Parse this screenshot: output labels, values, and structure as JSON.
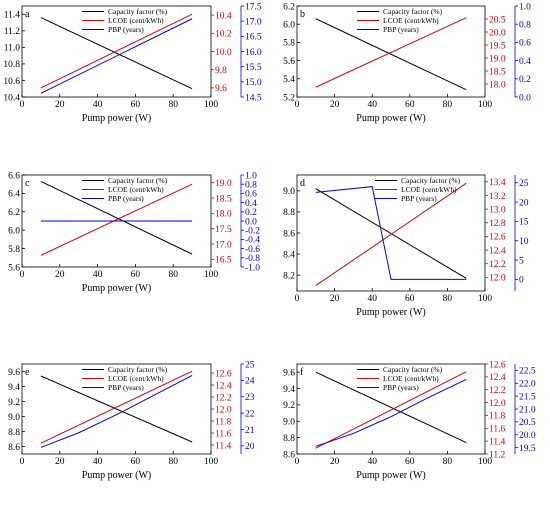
{
  "colors": {
    "capacity": "#000000",
    "lcoe": "#e00000",
    "pbp": "#0000ee"
  },
  "chart_data": [
    {
      "type": "line",
      "panel": "a",
      "xlabel": "Pump power (W)",
      "xlim": [
        0,
        100
      ],
      "xticks": [
        0,
        20,
        40,
        60,
        80,
        100
      ],
      "legend": [
        "Capacity factor (%)",
        "LCOE (cent/kWh)",
        "PBP (years)"
      ],
      "legend_position": "top-center",
      "axes": {
        "left": {
          "lim": [
            10.4,
            11.5
          ],
          "ticks": [
            10.4,
            10.6,
            10.8,
            11.0,
            11.2,
            11.4
          ],
          "decimals": 1
        },
        "red": {
          "lim": [
            9.5,
            10.5
          ],
          "ticks": [
            9.6,
            9.8,
            10.0,
            10.2,
            10.4
          ],
          "decimals": 1
        },
        "blue": {
          "lim": [
            14.5,
            17.5
          ],
          "ticks": [
            14.5,
            15.0,
            15.5,
            16.0,
            16.5,
            17.0,
            17.5
          ],
          "decimals": 1
        }
      },
      "series": [
        {
          "name": "Capacity factor (%)",
          "axis": "left",
          "x": [
            10,
            90
          ],
          "y": [
            11.36,
            10.5
          ]
        },
        {
          "name": "LCOE (cent/kWh)",
          "axis": "red",
          "x": [
            10,
            90
          ],
          "y": [
            9.6,
            10.41
          ]
        },
        {
          "name": "PBP (years)",
          "axis": "blue",
          "x": [
            10,
            90
          ],
          "y": [
            14.62,
            17.08
          ]
        }
      ]
    },
    {
      "type": "line",
      "panel": "b",
      "xlabel": "Pump power (W)",
      "xlim": [
        0,
        100
      ],
      "xticks": [
        0,
        20,
        40,
        60,
        80,
        100
      ],
      "legend": [
        "Capacity factor (%)",
        "LCOE (cent/kWh)",
        "PBP (years)"
      ],
      "legend_position": "top-center",
      "axes": {
        "left": {
          "lim": [
            5.2,
            6.2
          ],
          "ticks": [
            5.2,
            5.4,
            5.6,
            5.8,
            6.0,
            6.2
          ],
          "decimals": 1
        },
        "red": {
          "lim": [
            17.5,
            21.0
          ],
          "ticks": [
            18.0,
            18.5,
            19.0,
            19.5,
            20.0,
            20.5
          ],
          "decimals": 1
        },
        "blue": {
          "lim": [
            0.0,
            1.0
          ],
          "ticks": [
            0.0,
            0.2,
            0.4,
            0.6,
            0.8,
            1.0
          ],
          "decimals": 1
        }
      },
      "series": [
        {
          "name": "Capacity factor (%)",
          "axis": "left",
          "x": [
            10,
            90
          ],
          "y": [
            6.06,
            5.28
          ]
        },
        {
          "name": "LCOE (cent/kWh)",
          "axis": "red",
          "x": [
            10,
            90
          ],
          "y": [
            17.88,
            20.55
          ]
        },
        {
          "name": "PBP (years)",
          "axis": "blue",
          "x": [],
          "y": []
        }
      ]
    },
    {
      "type": "line",
      "panel": "c",
      "xlabel": "Pump power (W)",
      "xlim": [
        0,
        100
      ],
      "xticks": [
        0,
        20,
        40,
        60,
        80,
        100
      ],
      "legend": [
        "Capacity factor (%)",
        "LCOE (cent/kWh)",
        "PBP (years)"
      ],
      "legend_position": "top-center",
      "axes": {
        "left": {
          "lim": [
            5.6,
            6.6
          ],
          "ticks": [
            5.6,
            5.8,
            6.0,
            6.2,
            6.4,
            6.6
          ],
          "decimals": 1
        },
        "red": {
          "lim": [
            16.25,
            19.25
          ],
          "ticks": [
            16.5,
            17.0,
            17.5,
            18.0,
            18.5,
            19.0
          ],
          "decimals": 1
        },
        "blue": {
          "lim": [
            -1.0,
            1.0
          ],
          "ticks": [
            -1.0,
            -0.8,
            -0.6,
            -0.4,
            -0.2,
            0.0,
            0.2,
            0.4,
            0.6,
            0.8,
            1.0
          ],
          "decimals": 1
        }
      },
      "series": [
        {
          "name": "Capacity factor (%)",
          "axis": "left",
          "x": [
            10,
            90
          ],
          "y": [
            6.53,
            5.74
          ]
        },
        {
          "name": "LCOE (cent/kWh)",
          "axis": "red",
          "x": [
            10,
            90
          ],
          "y": [
            16.63,
            18.95
          ]
        },
        {
          "name": "PBP (years)",
          "axis": "blue",
          "x": [
            10,
            90
          ],
          "y": [
            0.0,
            0.0
          ]
        }
      ]
    },
    {
      "type": "line",
      "panel": "d",
      "xlabel": "Pump power (W)",
      "xlim": [
        0,
        100
      ],
      "xticks": [
        0,
        20,
        40,
        60,
        80,
        100
      ],
      "legend": [
        "Capacity factor (%)",
        "LCOE (cent/kWh)",
        "PBP (years)"
      ],
      "legend_position": "top-right",
      "axes": {
        "left": {
          "lim": [
            8.05,
            9.15
          ],
          "ticks": [
            8.2,
            8.4,
            8.6,
            8.8,
            9.0
          ],
          "decimals": 1
        },
        "red": {
          "lim": [
            11.8,
            13.5
          ],
          "ticks": [
            12.0,
            12.2,
            12.4,
            12.6,
            12.8,
            13.0,
            13.2,
            13.4
          ],
          "decimals": 1
        },
        "blue": {
          "lim": [
            -3,
            27
          ],
          "ticks": [
            0,
            5,
            10,
            15,
            20,
            25
          ],
          "decimals": 0
        }
      },
      "series": [
        {
          "name": "Capacity factor (%)",
          "axis": "left",
          "x": [
            10,
            90
          ],
          "y": [
            9.02,
            8.17
          ]
        },
        {
          "name": "LCOE (cent/kWh)",
          "axis": "red",
          "x": [
            10,
            90
          ],
          "y": [
            11.88,
            13.38
          ]
        },
        {
          "name": "PBP (years)",
          "axis": "blue",
          "x": [
            10,
            40,
            50,
            60,
            70,
            80,
            90
          ],
          "y": [
            22.5,
            24,
            0,
            0,
            0,
            0,
            0
          ]
        }
      ]
    },
    {
      "type": "line",
      "panel": "e",
      "xlabel": "Pump power (W)",
      "xlim": [
        0,
        100
      ],
      "xticks": [
        0,
        20,
        40,
        60,
        80,
        100
      ],
      "legend": [
        "Capacity factor (%)",
        "LCOE (cent/kWh)",
        "PBP (years)"
      ],
      "legend_position": "top-center",
      "axes": {
        "left": {
          "lim": [
            8.5,
            9.7
          ],
          "ticks": [
            8.6,
            8.8,
            9.0,
            9.2,
            9.4,
            9.6
          ],
          "decimals": 1
        },
        "red": {
          "lim": [
            11.25,
            12.75
          ],
          "ticks": [
            11.4,
            11.6,
            11.8,
            12.0,
            12.2,
            12.4,
            12.6
          ],
          "decimals": 1
        },
        "blue": {
          "lim": [
            19.5,
            25.0
          ],
          "ticks": [
            20,
            21,
            22,
            23,
            24,
            25
          ],
          "decimals": 0
        }
      },
      "series": [
        {
          "name": "Capacity factor (%)",
          "axis": "left",
          "x": [
            10,
            90
          ],
          "y": [
            9.54,
            8.66
          ]
        },
        {
          "name": "LCOE (cent/kWh)",
          "axis": "red",
          "x": [
            10,
            90
          ],
          "y": [
            11.43,
            12.63
          ]
        },
        {
          "name": "PBP (years)",
          "axis": "blue",
          "x": [
            10,
            30,
            50,
            70,
            90
          ],
          "y": [
            19.9,
            20.8,
            21.9,
            23.1,
            24.3
          ]
        }
      ]
    },
    {
      "type": "line",
      "panel": "f",
      "xlabel": "Pump power (W)",
      "xlim": [
        0,
        100
      ],
      "xticks": [
        0,
        20,
        40,
        60,
        80,
        100
      ],
      "legend": [
        "Capacity factor (%)",
        "LCOE (cent/kWh)",
        "PBP (years)"
      ],
      "legend_position": "top-center",
      "axes": {
        "left": {
          "lim": [
            8.6,
            9.7
          ],
          "ticks": [
            8.6,
            8.8,
            9.0,
            9.2,
            9.4,
            9.6
          ],
          "decimals": 1
        },
        "red": {
          "lim": [
            11.2,
            12.6
          ],
          "ticks": [
            11.2,
            11.4,
            11.6,
            11.8,
            12.0,
            12.2,
            12.4,
            12.6
          ],
          "decimals": 1
        },
        "blue": {
          "lim": [
            19.25,
            22.75
          ],
          "ticks": [
            19.5,
            20.0,
            20.5,
            21.0,
            21.5,
            22.0,
            22.5
          ],
          "decimals": 1
        }
      },
      "series": [
        {
          "name": "Capacity factor (%)",
          "axis": "left",
          "x": [
            10,
            90
          ],
          "y": [
            9.6,
            8.74
          ]
        },
        {
          "name": "LCOE (cent/kWh)",
          "axis": "red",
          "x": [
            10,
            90
          ],
          "y": [
            11.29,
            12.48
          ]
        },
        {
          "name": "PBP (years)",
          "axis": "blue",
          "x": [
            10,
            30,
            50,
            70,
            90
          ],
          "y": [
            19.55,
            20.05,
            20.7,
            21.45,
            22.15
          ]
        }
      ]
    }
  ]
}
